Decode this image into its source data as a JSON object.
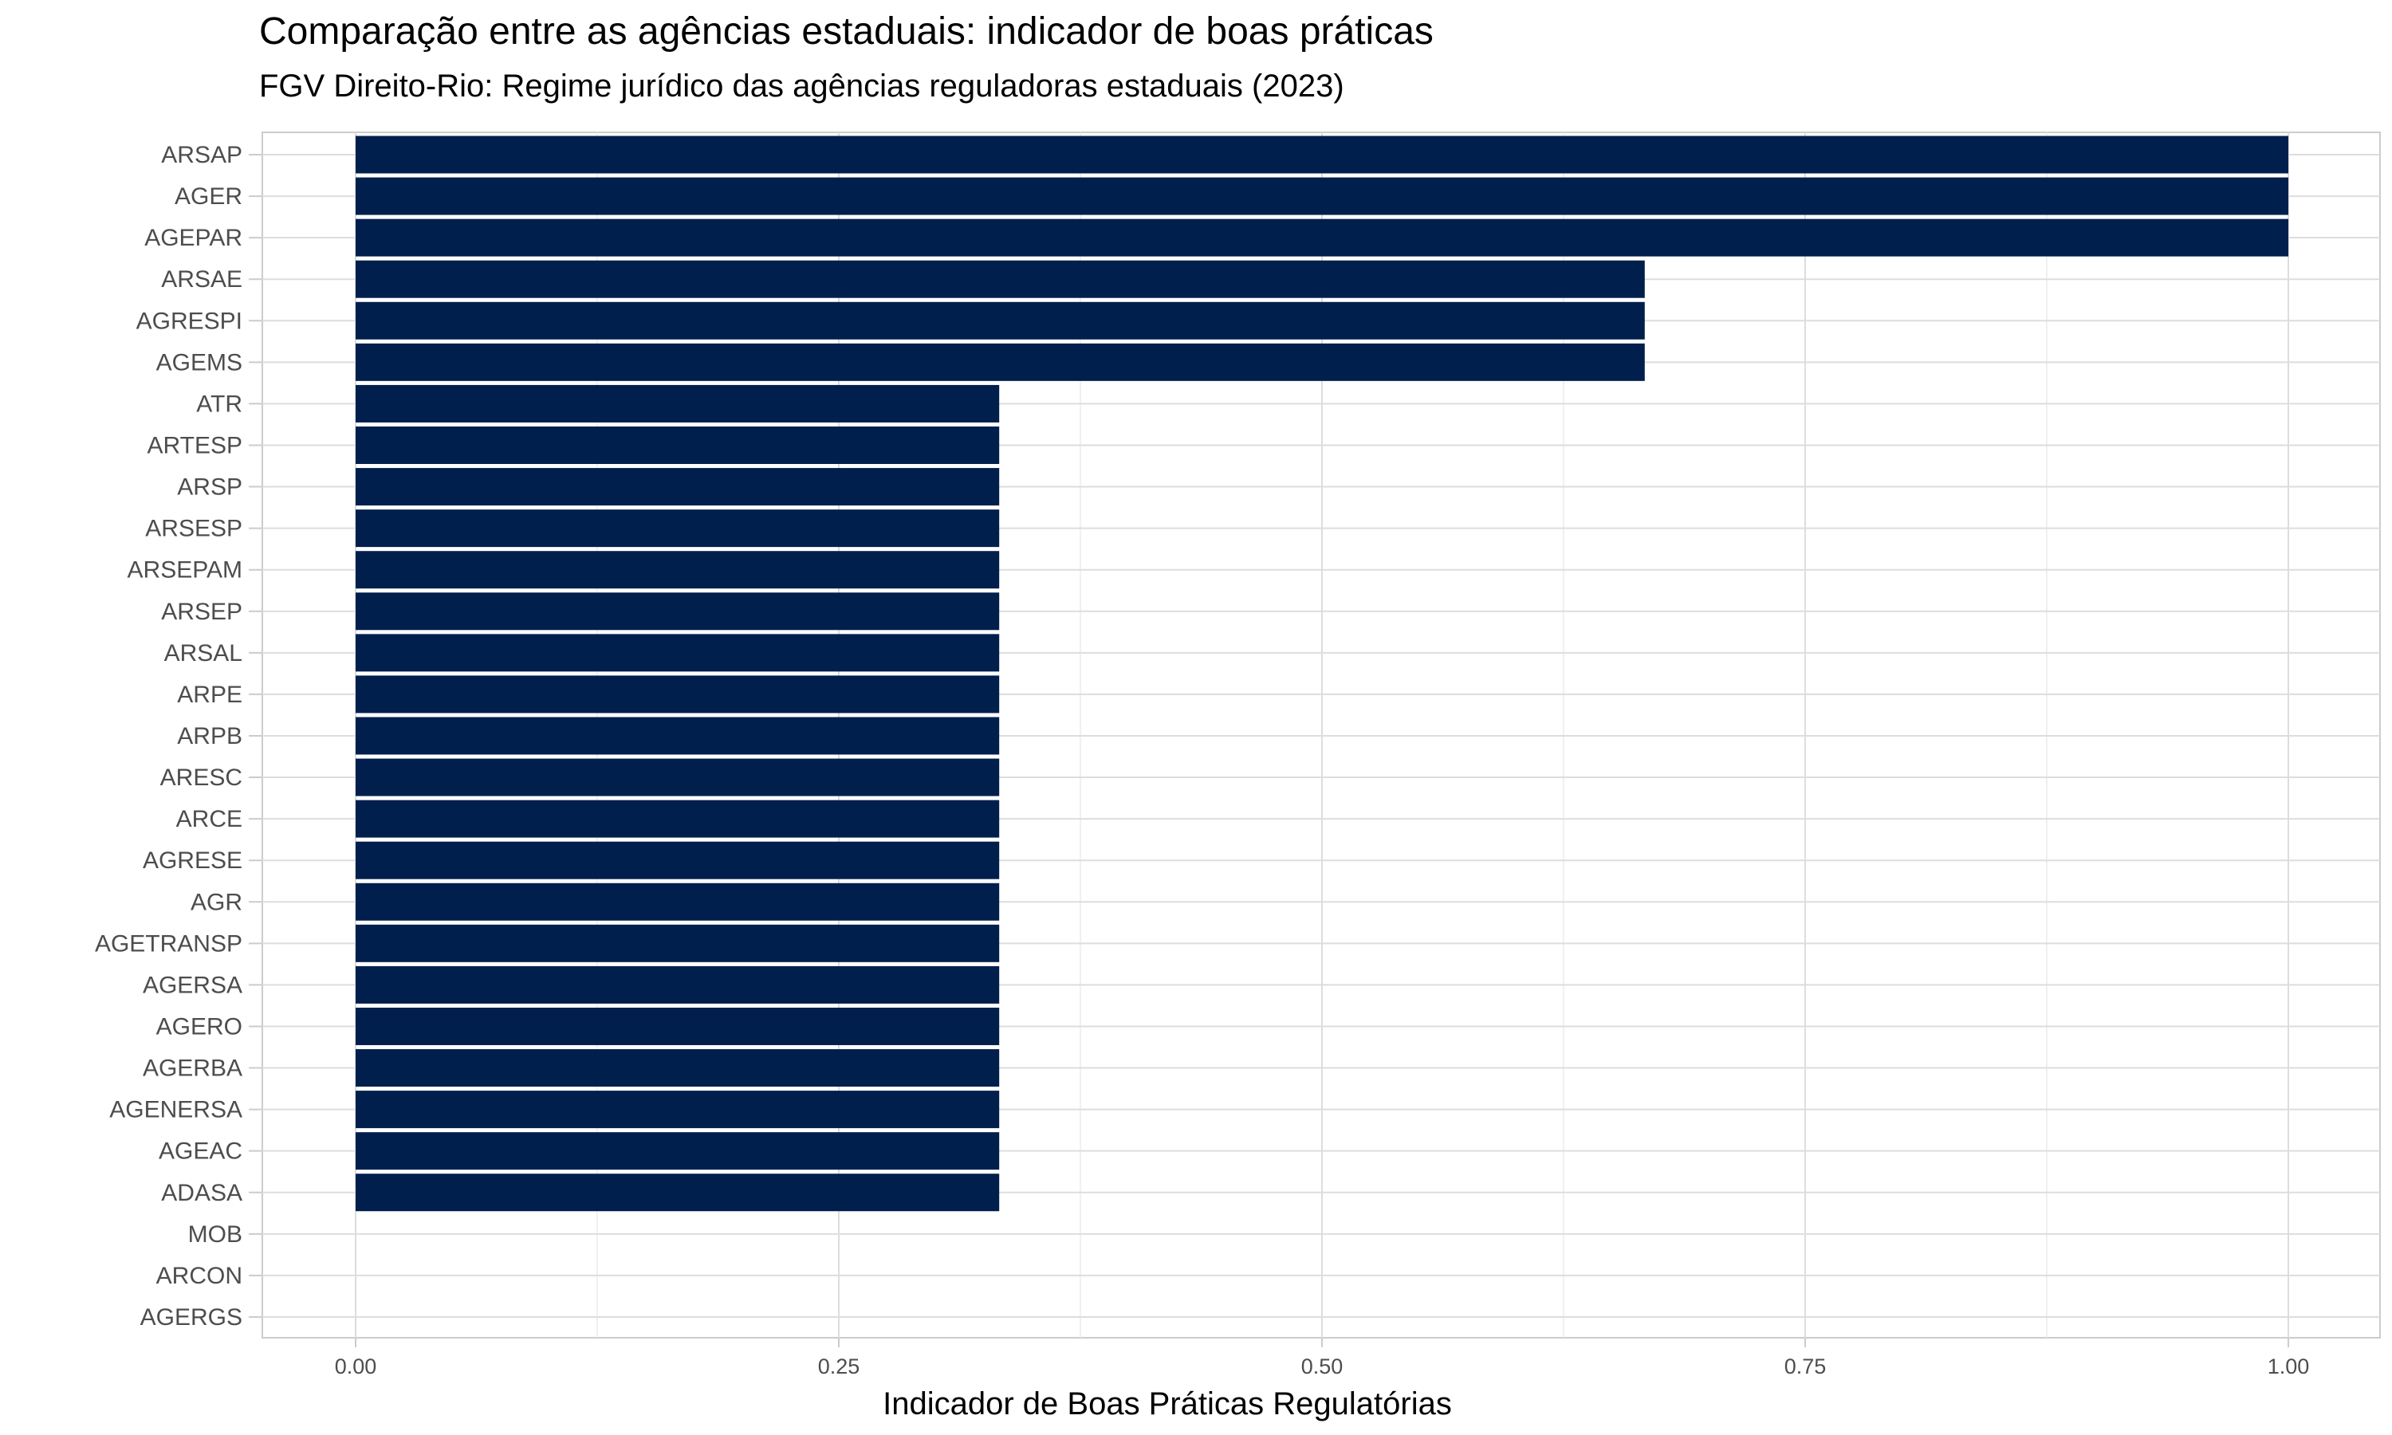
{
  "chart_data": {
    "type": "bar",
    "orientation": "horizontal",
    "title": "Comparação entre as agências estaduais: indicador de boas práticas",
    "subtitle": "FGV Direito-Rio: Regime jurídico das agências reguladoras estaduais (2023)",
    "xlabel": "Indicador de Boas Práticas Regulatórias",
    "ylabel": "",
    "xlim": [
      0,
      1
    ],
    "xticks": [
      "0.00",
      "0.25",
      "0.50",
      "0.75",
      "1.00"
    ],
    "xtick_values": [
      0,
      0.25,
      0.5,
      0.75,
      1.0
    ],
    "grid": true,
    "bar_color": "#001f4d",
    "categories": [
      "ARSAP",
      "AGER",
      "AGEPAR",
      "ARSAE",
      "AGRESPI",
      "AGEMS",
      "ATR",
      "ARTESP",
      "ARSP",
      "ARSESP",
      "ARSEPAM",
      "ARSEP",
      "ARSAL",
      "ARPE",
      "ARPB",
      "ARESC",
      "ARCE",
      "AGRESE",
      "AGR",
      "AGETRANSP",
      "AGERSA",
      "AGERO",
      "AGERBA",
      "AGENERSA",
      "AGEAC",
      "ADASA",
      "MOB",
      "ARCON",
      "AGERGS"
    ],
    "values": [
      1.0,
      1.0,
      1.0,
      0.667,
      0.667,
      0.667,
      0.333,
      0.333,
      0.333,
      0.333,
      0.333,
      0.333,
      0.333,
      0.333,
      0.333,
      0.333,
      0.333,
      0.333,
      0.333,
      0.333,
      0.333,
      0.333,
      0.333,
      0.333,
      0.333,
      0.333,
      0,
      0,
      0
    ]
  }
}
